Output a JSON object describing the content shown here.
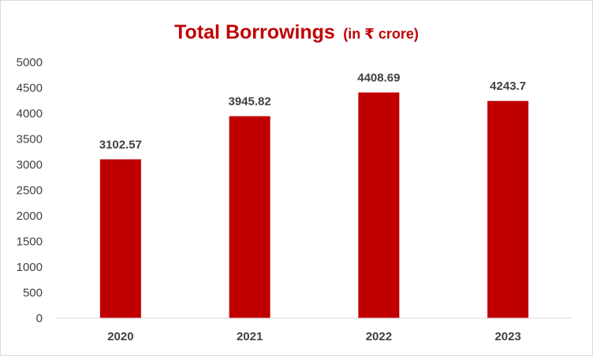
{
  "chart_data": {
    "type": "bar",
    "title": "Total Borrowings",
    "title_suffix": "(in ₹ crore)",
    "categories": [
      "2020",
      "2021",
      "2022",
      "2023"
    ],
    "values": [
      3102.57,
      3945.82,
      4408.69,
      4243.7
    ],
    "data_labels": [
      "3102.57",
      "3945.82",
      "4408.69",
      "4243.7"
    ],
    "ylim": [
      0,
      5000
    ],
    "yticks": [
      "0",
      "500",
      "1000",
      "1500",
      "2000",
      "2500",
      "3000",
      "3500",
      "4000",
      "4500",
      "5000"
    ],
    "xlabel": "",
    "ylabel": "",
    "grid": false,
    "legend": "none",
    "bar_color": "#c00000",
    "title_color": "#c00000"
  }
}
